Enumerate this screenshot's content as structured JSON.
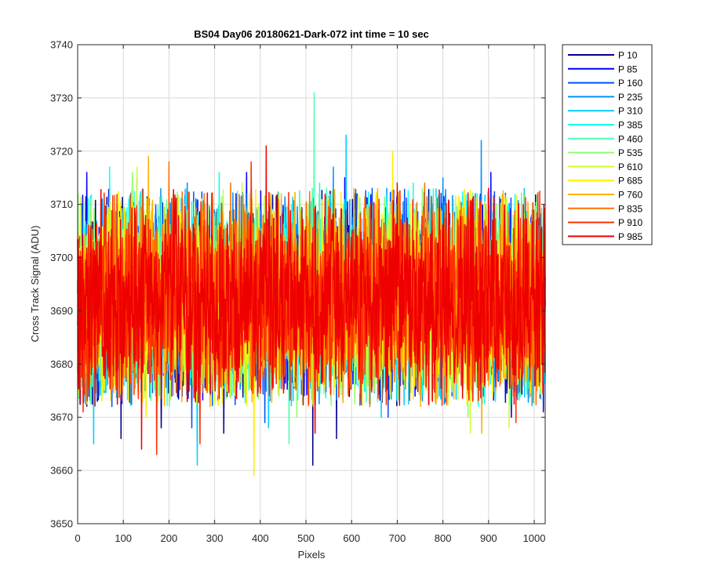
{
  "chart_data": {
    "type": "line",
    "title": "BS04 Day06 20180621-Dark-072 int time = 10 sec",
    "xlabel": "Pixels",
    "ylabel": "Cross Track Signal (ADU)",
    "xlim": [
      0,
      1024
    ],
    "ylim": [
      3650,
      3740
    ],
    "xticks": [
      0,
      100,
      200,
      300,
      400,
      500,
      600,
      700,
      800,
      900,
      1000
    ],
    "yticks": [
      3650,
      3660,
      3670,
      3680,
      3690,
      3700,
      3710,
      3720,
      3730,
      3740
    ],
    "grid": true,
    "legend_position": "outside-right",
    "noise": {
      "mean": 3692,
      "typical_min": 3674,
      "typical_max": 3711
    },
    "series": [
      {
        "name": "P 10",
        "color": "#00008f",
        "spikes": [
          [
            43,
            3673
          ],
          [
            95,
            3666
          ],
          [
            183,
            3668
          ],
          [
            320,
            3667
          ],
          [
            515,
            3661
          ],
          [
            567,
            3666
          ],
          [
            950,
            3670
          ]
        ]
      },
      {
        "name": "P 85",
        "color": "#0000ff",
        "spikes": [
          [
            20,
            3716
          ],
          [
            130,
            3715
          ],
          [
            370,
            3716
          ],
          [
            585,
            3715
          ],
          [
            905,
            3716
          ],
          [
            1020,
            3671
          ]
        ]
      },
      {
        "name": "P 160",
        "color": "#0050ff",
        "spikes": [
          [
            75,
            3672
          ],
          [
            250,
            3668
          ],
          [
            410,
            3669
          ],
          [
            680,
            3670
          ],
          [
            820,
            3674
          ]
        ]
      },
      {
        "name": "P 235",
        "color": "#0090ff",
        "spikes": [
          [
            240,
            3714
          ],
          [
            560,
            3717
          ],
          [
            800,
            3715
          ],
          [
            884,
            3722
          ]
        ]
      },
      {
        "name": "P 310",
        "color": "#00cfff",
        "spikes": [
          [
            35,
            3665
          ],
          [
            262,
            3661
          ],
          [
            418,
            3668
          ],
          [
            588,
            3723
          ],
          [
            665,
            3670
          ]
        ]
      },
      {
        "name": "P 385",
        "color": "#10ffef",
        "spikes": [
          [
            70,
            3717
          ],
          [
            310,
            3716
          ],
          [
            530,
            3714
          ],
          [
            735,
            3714
          ]
        ]
      },
      {
        "name": "P 460",
        "color": "#50ffaf",
        "spikes": [
          [
            518,
            3731
          ],
          [
            463,
            3665
          ],
          [
            545,
            3713
          ]
        ]
      },
      {
        "name": "P 535",
        "color": "#8fff70",
        "spikes": [
          [
            120,
            3716
          ],
          [
            480,
            3670
          ],
          [
            755,
            3713
          ],
          [
            855,
            3670
          ]
        ]
      },
      {
        "name": "P 610",
        "color": "#cfff30",
        "spikes": [
          [
            130,
            3717
          ],
          [
            360,
            3714
          ],
          [
            860,
            3667
          ],
          [
            945,
            3668
          ]
        ]
      },
      {
        "name": "P 685",
        "color": "#ffef00",
        "spikes": [
          [
            386,
            3659
          ],
          [
            690,
            3720
          ],
          [
            150,
            3670
          ],
          [
            980,
            3712
          ]
        ]
      },
      {
        "name": "P 760",
        "color": "#ffaf00",
        "spikes": [
          [
            155,
            3719
          ],
          [
            290,
            3672
          ],
          [
            605,
            3713
          ],
          [
            885,
            3667
          ]
        ]
      },
      {
        "name": "P 835",
        "color": "#ff7000",
        "spikes": [
          [
            200,
            3718
          ],
          [
            335,
            3714
          ],
          [
            640,
            3672
          ],
          [
            760,
            3714
          ]
        ]
      },
      {
        "name": "P 910",
        "color": "#ff3000",
        "spikes": [
          [
            12,
            3671
          ],
          [
            173,
            3663
          ],
          [
            268,
            3665
          ],
          [
            380,
            3718
          ],
          [
            620,
            3674
          ],
          [
            960,
            3669
          ]
        ]
      },
      {
        "name": "P 985",
        "color": "#ef0000",
        "spikes": [
          [
            140,
            3664
          ],
          [
            413,
            3721
          ],
          [
            520,
            3667
          ],
          [
            700,
            3714
          ],
          [
            900,
            3713
          ]
        ]
      }
    ]
  }
}
